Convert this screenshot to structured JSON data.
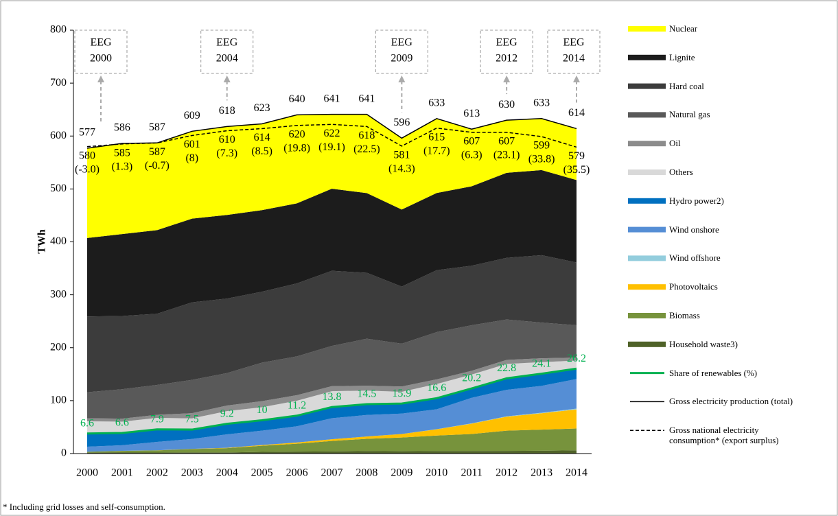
{
  "chart_data": {
    "type": "stacked_area",
    "y_label": "TWh",
    "categories": [
      "2000",
      "2001",
      "2002",
      "2003",
      "2004",
      "2005",
      "2006",
      "2007",
      "2008",
      "2009",
      "2010",
      "2011",
      "2012",
      "2013",
      "2014"
    ],
    "ylim": [
      0,
      800
    ],
    "yticks": [
      0,
      100,
      200,
      300,
      400,
      500,
      600,
      700,
      800
    ],
    "series": [
      {
        "name": "Nuclear",
        "color": "#ffff00",
        "values": [
          169.6,
          171.3,
          164.8,
          165.1,
          167.1,
          163.0,
          167.3,
          140.5,
          148.8,
          134.9,
          140.6,
          108.0,
          99.5,
          97.3,
          97.1
        ]
      },
      {
        "name": "Lignite",
        "color": "#1c1c1c",
        "values": [
          148.3,
          154.8,
          158.0,
          158.2,
          158.0,
          154.1,
          151.1,
          155.1,
          150.6,
          145.6,
          145.9,
          150.1,
          160.7,
          160.9,
          155.8
        ]
      },
      {
        "name": "Hard coal",
        "color": "#3c3c3c",
        "values": [
          143.1,
          138.4,
          134.6,
          146.5,
          140.8,
          134.1,
          137.9,
          142.0,
          124.6,
          107.9,
          117.0,
          112.4,
          116.4,
          127.3,
          118.6
        ]
      },
      {
        "name": "Natural gas",
        "color": "#595959",
        "values": [
          49.2,
          55.5,
          56.3,
          62.9,
          61.4,
          72.7,
          73.4,
          76.0,
          88.8,
          80.9,
          89.3,
          86.1,
          76.4,
          67.5,
          61.1
        ]
      },
      {
        "name": "Oil",
        "color": "#8c8c8c",
        "values": [
          5.9,
          5.7,
          5.9,
          9.9,
          10.4,
          11.6,
          10.5,
          9.6,
          9.2,
          10.1,
          8.7,
          7.2,
          7.6,
          7.2,
          5.7
        ]
      },
      {
        "name": "Others",
        "color": "#d9d9d9",
        "values": [
          23.0,
          21.4,
          21.7,
          21.1,
          24.1,
          24.6,
          28.2,
          29.9,
          25.7,
          22.1,
          26.9,
          26.1,
          27.2,
          21.9,
          15.3
        ]
      },
      {
        "name": "Hydro power2)",
        "color": "#0070c0",
        "values": [
          24.9,
          23.2,
          23.7,
          17.7,
          19.9,
          19.6,
          20.0,
          21.2,
          20.4,
          19.0,
          21.0,
          17.7,
          21.8,
          23.0,
          19.6
        ]
      },
      {
        "name": "Wind onshore",
        "color": "#558ed5",
        "values": [
          9.5,
          10.5,
          15.8,
          18.7,
          25.5,
          27.2,
          30.7,
          39.7,
          40.6,
          38.6,
          37.6,
          48.3,
          50.0,
          50.8,
          55.9
        ]
      },
      {
        "name": "Wind offshore",
        "color": "#93cddd",
        "values": [
          0,
          0,
          0,
          0,
          0,
          0,
          0,
          0,
          0,
          0.04,
          0.2,
          0.6,
          0.7,
          0.9,
          1.5
        ]
      },
      {
        "name": "Photovoltaics",
        "color": "#ffc000",
        "values": [
          0.06,
          0.1,
          0.2,
          0.3,
          0.6,
          1.3,
          2.2,
          3.1,
          4.4,
          6.6,
          11.7,
          19.6,
          26.4,
          31.0,
          36.1
        ]
      },
      {
        "name": "Biomass",
        "color": "#77933c",
        "values": [
          1.6,
          3.2,
          4.1,
          6.4,
          8.1,
          11.5,
          15.0,
          19.8,
          23.2,
          26.0,
          29.4,
          32.1,
          38.3,
          39.8,
          41.2
        ]
      },
      {
        "name": "Household waste3)",
        "color": "#4f6228",
        "values": [
          1.8,
          1.9,
          1.9,
          2.2,
          2.1,
          3.3,
          3.7,
          4.1,
          4.7,
          4.3,
          4.7,
          4.8,
          5.0,
          5.4,
          6.1
        ]
      }
    ],
    "renewable_count": 6,
    "share": {
      "name": "Share of renewables (%)",
      "color": "#00b050",
      "values": [
        6.6,
        6.6,
        7.9,
        7.5,
        9.2,
        10,
        11.2,
        13.8,
        14.5,
        15.9,
        16.6,
        20.2,
        22.8,
        24.1,
        26.2
      ]
    },
    "total": {
      "name": "Gross electricity production (total)",
      "color": "#000000",
      "values": [
        577,
        586,
        587,
        609,
        618,
        623,
        640,
        641,
        641,
        596,
        633,
        613,
        630,
        633,
        614
      ]
    },
    "consumption": {
      "name": "Gross national electricity consumption* (export surplus)",
      "color": "#000000",
      "values": [
        580,
        585,
        587,
        601,
        610,
        614,
        620,
        622,
        618,
        581,
        615,
        607,
        607,
        599,
        579
      ],
      "surplus_labels": [
        "(-3.0)",
        "(1.3)",
        "(-0.7)",
        "(8)",
        "(7.3)",
        "(8.5)",
        "(19.8)",
        "(19.1)",
        "(22.5)",
        "(14.3)",
        "(17.7)",
        "(6.3)",
        "(23.1)",
        "(33.8)",
        "(35.5)"
      ]
    },
    "annotations": [
      [
        "EEG",
        "2000"
      ],
      [
        "EEG",
        "2004"
      ],
      [
        "EEG",
        "2009"
      ],
      [
        "EEG",
        "2012"
      ],
      [
        "EEG",
        "2014"
      ]
    ],
    "footnote": "* Including  grid losses and self-consumption."
  }
}
